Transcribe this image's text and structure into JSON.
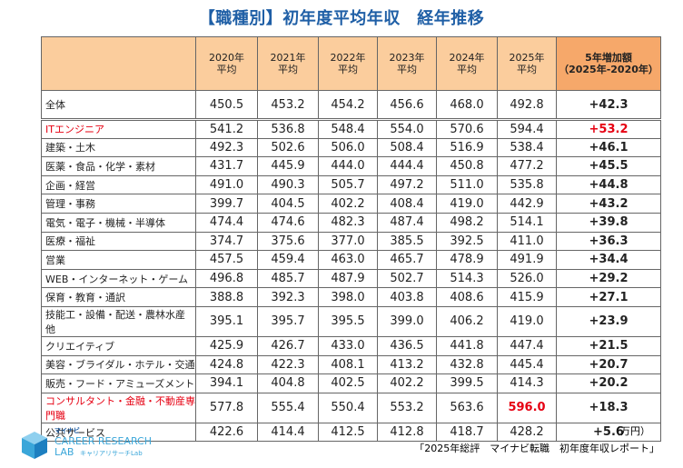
{
  "header": {
    "title": "【職種別】初年度平均年収　経年推移"
  },
  "table": {
    "columns": [
      [
        "2020年",
        "平均"
      ],
      [
        "2021年",
        "平均"
      ],
      [
        "2022年",
        "平均"
      ],
      [
        "2023年",
        "平均"
      ],
      [
        "2024年",
        "平均"
      ],
      [
        "2025年",
        "平均"
      ],
      [
        "5年増加額",
        "（2025年-2020年）"
      ]
    ],
    "rows": [
      [
        "全体",
        "450.5",
        "453.2",
        "454.2",
        "456.6",
        "468.0",
        "492.8",
        "+42.3"
      ],
      [
        "ITエンジニア",
        "541.2",
        "536.8",
        "548.4",
        "554.0",
        "570.6",
        "594.4",
        "+53.2"
      ],
      [
        "建築・土木",
        "492.3",
        "502.6",
        "506.0",
        "508.4",
        "516.9",
        "538.4",
        "+46.1"
      ],
      [
        "医薬・食品・化学・素材",
        "431.7",
        "445.9",
        "444.0",
        "444.4",
        "450.8",
        "477.2",
        "+45.5"
      ],
      [
        "企画・経営",
        "491.0",
        "490.3",
        "505.7",
        "497.2",
        "511.0",
        "535.8",
        "+44.8"
      ],
      [
        "管理・事務",
        "399.7",
        "404.5",
        "402.2",
        "408.4",
        "419.0",
        "442.9",
        "+43.2"
      ],
      [
        "電気・電子・機械・半導体",
        "474.4",
        "474.6",
        "482.3",
        "487.4",
        "498.2",
        "514.1",
        "+39.8"
      ],
      [
        "医療・福祉",
        "374.7",
        "375.6",
        "377.0",
        "385.5",
        "392.5",
        "411.0",
        "+36.3"
      ],
      [
        "営業",
        "457.5",
        "459.4",
        "463.0",
        "465.7",
        "478.9",
        "491.9",
        "+34.4"
      ],
      [
        "WEB・インターネット・ゲーム",
        "496.8",
        "485.7",
        "487.9",
        "502.7",
        "514.3",
        "526.0",
        "+29.2"
      ],
      [
        "保育・教育・通訳",
        "388.8",
        "392.3",
        "398.0",
        "403.8",
        "408.6",
        "415.9",
        "+27.1"
      ],
      [
        "技能工・設備・配送・農林水産 他",
        "395.1",
        "395.7",
        "395.5",
        "399.0",
        "406.2",
        "419.0",
        "+23.9"
      ],
      [
        "クリエイティブ",
        "425.9",
        "426.7",
        "433.0",
        "436.5",
        "441.8",
        "447.4",
        "+21.5"
      ],
      [
        "美容・ブライダル・ホテル・交通",
        "424.8",
        "422.3",
        "408.1",
        "413.2",
        "432.8",
        "445.4",
        "+20.7"
      ],
      [
        "販売・フード・アミューズメント",
        "394.1",
        "404.8",
        "402.5",
        "402.2",
        "399.5",
        "414.3",
        "+20.2"
      ],
      [
        "コンサルタント・金融・不動産専門職",
        "577.8",
        "555.4",
        "550.4",
        "553.2",
        "563.6",
        "596.0",
        "+18.3"
      ],
      [
        "公共サービス",
        "422.6",
        "414.4",
        "412.5",
        "412.8",
        "418.7",
        "428.2",
        "+5.6"
      ]
    ]
  },
  "footer": {
    "unit": "（万円）",
    "source": "「2025年総評　マイナビ転職　初年度年収レポート」"
  },
  "logo": {
    "brand": "マイナビ",
    "line1": "CAREER RESEARCH",
    "line2": "LAB",
    "sub": "キャリアリサーチLab"
  }
}
